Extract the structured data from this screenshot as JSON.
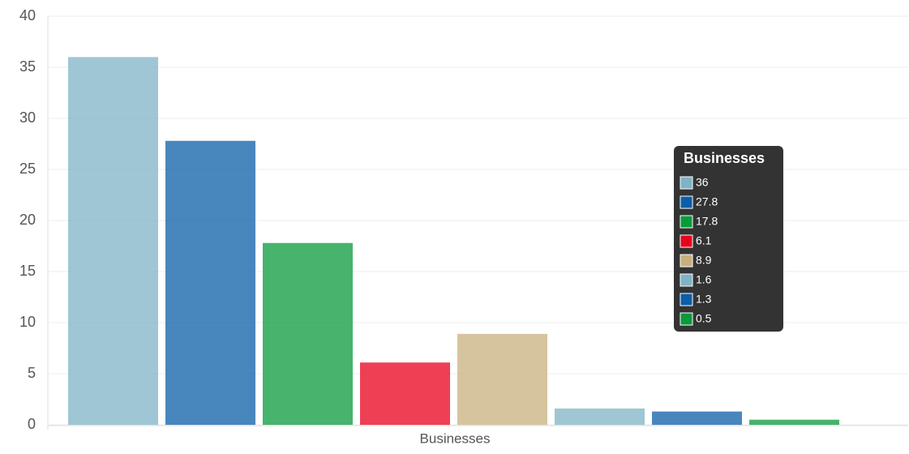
{
  "chart_data": {
    "type": "bar",
    "categories": [
      "Businesses"
    ],
    "series": [
      {
        "color": "#7fb3c6",
        "values": [
          36
        ]
      },
      {
        "color": "#0b5ea8",
        "values": [
          27.8
        ]
      },
      {
        "color": "#0a9a3c",
        "values": [
          17.8
        ]
      },
      {
        "color": "#e8001c",
        "values": [
          6.1
        ]
      },
      {
        "color": "#c8b07e",
        "values": [
          8.9
        ]
      },
      {
        "color": "#7fb3c6",
        "values": [
          1.6
        ]
      },
      {
        "color": "#0b5ea8",
        "values": [
          1.3
        ]
      },
      {
        "color": "#0a9a3c",
        "values": [
          0.5
        ]
      }
    ],
    "ylim": [
      0,
      40
    ],
    "yticks": [
      0,
      5,
      10,
      15,
      20,
      25,
      30,
      35,
      40
    ],
    "grid": true
  }
}
